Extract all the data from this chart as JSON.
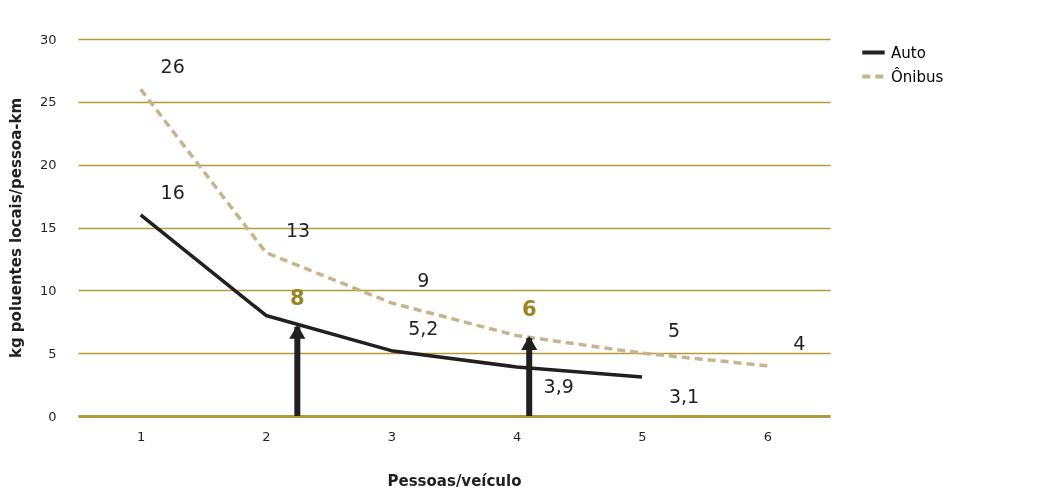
{
  "chart_data": {
    "type": "line",
    "xlabel": "Pessoas/veículo",
    "ylabel": "kg poluentes locais/pessoa-km",
    "x": [
      1,
      2,
      3,
      4,
      5,
      6
    ],
    "xlim": [
      0.5,
      6.5
    ],
    "xticks": [
      1,
      2,
      3,
      4,
      5,
      6
    ],
    "ylim": [
      0,
      30
    ],
    "yticks": [
      0,
      5,
      10,
      15,
      20,
      25,
      30
    ],
    "series": [
      {
        "name": "Auto",
        "color": "#231f20",
        "line_style": "solid",
        "values": [
          16,
          8,
          5.2,
          3.9,
          3.1,
          null
        ],
        "value_labels": [
          "16",
          null,
          "5,2",
          "3,9",
          "3,1",
          null
        ]
      },
      {
        "name": "Ônibus",
        "color": "#c8b48c",
        "line_style": "dashed",
        "values": [
          26,
          13,
          9,
          6.4,
          5,
          4
        ],
        "value_labels": [
          "26",
          "13",
          "9",
          null,
          "5",
          "4"
        ]
      }
    ],
    "annotations": [
      {
        "text": "8",
        "x": 2.25,
        "y": 7.1
      },
      {
        "text": "6",
        "x": 4.1,
        "y": 6.2
      }
    ],
    "grid": "y",
    "legend": "right",
    "marker": "none"
  }
}
